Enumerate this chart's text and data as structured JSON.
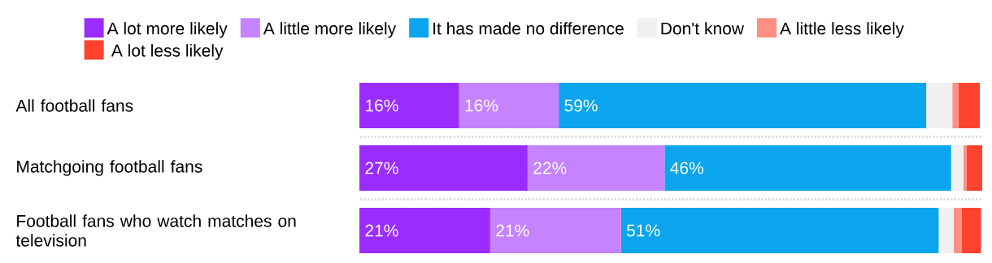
{
  "chart_data": {
    "type": "bar",
    "orientation": "horizontal",
    "stacked": true,
    "legend": "top",
    "categories": [
      "All football fans",
      "Matchgoing football fans",
      "Football fans who watch matches on television"
    ],
    "series": [
      {
        "name": "A lot more likely",
        "color": "#9b2cff",
        "values": [
          16,
          27,
          21
        ],
        "value_labels": [
          "16%",
          "27%",
          "21%"
        ]
      },
      {
        "name": "A little more likely",
        "color": "#c683ff",
        "values": [
          16,
          22,
          21
        ],
        "value_labels": [
          "16%",
          "22%",
          "21%"
        ]
      },
      {
        "name": "It has made no difference",
        "color": "#0aa5ec",
        "values": [
          59,
          46,
          51
        ],
        "value_labels": [
          "59%",
          "46%",
          "51%"
        ]
      },
      {
        "name": "Don't know",
        "color": "#f0f0f0",
        "values": [
          4.2,
          2,
          2.4
        ]
      },
      {
        "name": "A little less likely",
        "color": "#ff8f80",
        "values": [
          1,
          0.5,
          1.3
        ]
      },
      {
        "name": "A lot less likely",
        "color": "#ff432e",
        "values": [
          3.4,
          2.5,
          3.1
        ]
      }
    ]
  }
}
